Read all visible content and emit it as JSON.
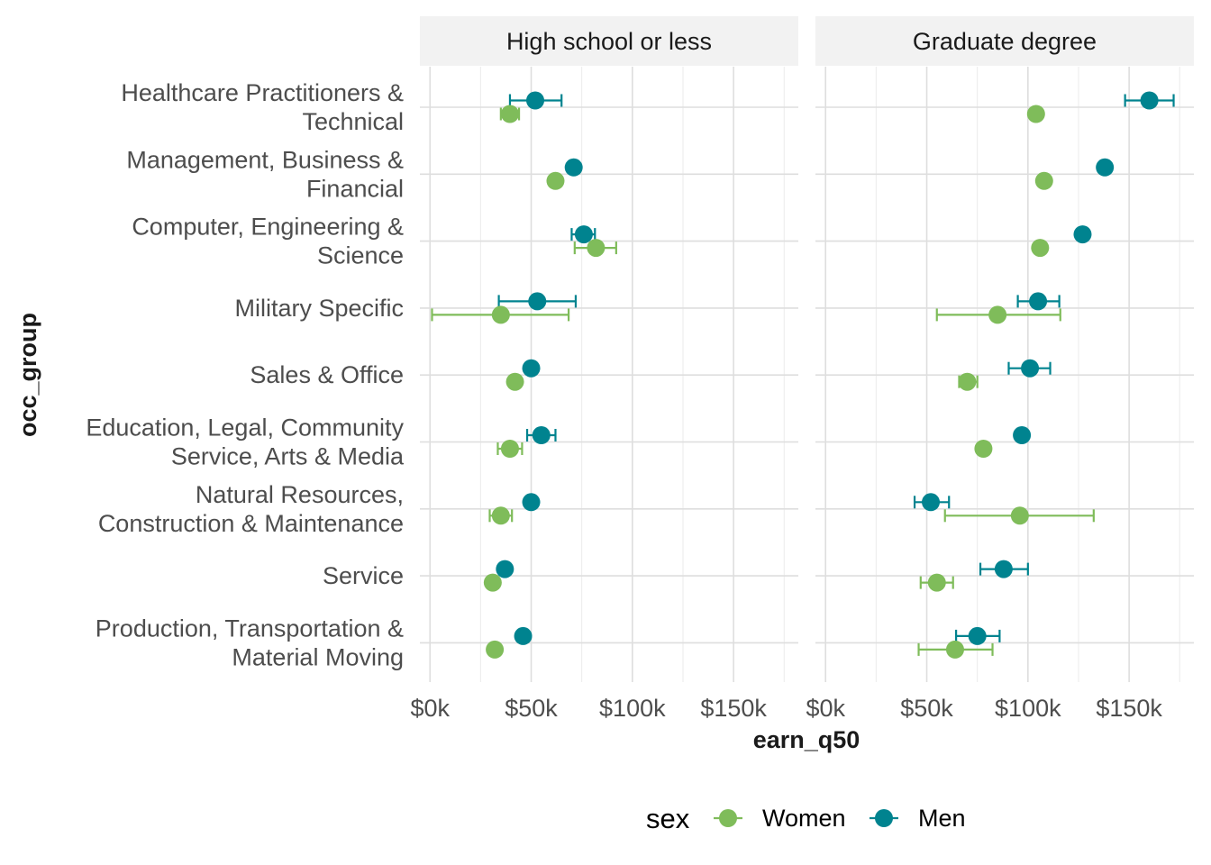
{
  "chart_data": {
    "type": "scatter",
    "ylabel": "occ_group",
    "xlabel": "earn_q50",
    "xlim": [
      -5000,
      182000
    ],
    "x_ticks": [
      0,
      50000,
      100000,
      150000
    ],
    "x_tick_labels": [
      "$0k",
      "$50k",
      "$100k",
      "$150k"
    ],
    "grid": true,
    "legend_position": "bottom",
    "legend_title": "sex",
    "categories": [
      "Healthcare Practitioners & Technical",
      "Management, Business & Financial",
      "Computer, Engineering & Science",
      "Military Specific",
      "Sales & Office",
      "Education, Legal, Community Service, Arts & Media",
      "Natural Resources, Construction & Maintenance",
      "Service",
      "Production, Transportation & Material Moving"
    ],
    "category_label_lines": [
      [
        "Healthcare Practitioners &",
        "Technical"
      ],
      [
        "Management, Business &",
        "Financial"
      ],
      [
        "Computer, Engineering &",
        "Science"
      ],
      [
        "Military Specific"
      ],
      [
        "Sales & Office"
      ],
      [
        "Education, Legal, Community",
        "Service, Arts & Media"
      ],
      [
        "Natural Resources,",
        "Construction & Maintenance"
      ],
      [
        "Service"
      ],
      [
        "Production, Transportation &",
        "Material Moving"
      ]
    ],
    "series_style": [
      {
        "name": "Women",
        "color": "#7fbc5a"
      },
      {
        "name": "Men",
        "color": "#00838f"
      }
    ],
    "panels": [
      {
        "title": "High school or less",
        "series": [
          {
            "name": "Women",
            "values": [
              39500,
              62000,
              82000,
              35000,
              42000,
              39500,
              35000,
              31000,
              32000
            ],
            "err_low": [
              35000,
              null,
              71500,
              1000,
              null,
              33500,
              29500,
              null,
              null
            ],
            "err_high": [
              44000,
              null,
              92000,
              68500,
              null,
              45500,
              40500,
              null,
              null
            ]
          },
          {
            "name": "Men",
            "values": [
              52000,
              71000,
              76000,
              53000,
              50000,
              55000,
              50000,
              37000,
              46000
            ],
            "err_low": [
              39500,
              68500,
              70000,
              34000,
              null,
              48000,
              null,
              null,
              null
            ],
            "err_high": [
              65000,
              73500,
              81500,
              72000,
              null,
              62000,
              null,
              null,
              null
            ]
          }
        ]
      },
      {
        "title": "Graduate degree",
        "series": [
          {
            "name": "Women",
            "values": [
              104000,
              108000,
              106000,
              85000,
              70000,
              78000,
              96000,
              55000,
              64000
            ],
            "err_low": [
              null,
              null,
              null,
              55000,
              66000,
              null,
              59000,
              47000,
              46000
            ],
            "err_high": [
              null,
              null,
              null,
              116000,
              75000,
              null,
              132500,
              63000,
              82500
            ]
          },
          {
            "name": "Men",
            "values": [
              160000,
              138000,
              127000,
              105000,
              101000,
              97000,
              52000,
              88000,
              75000
            ],
            "err_low": [
              148000,
              null,
              null,
              95000,
              90500,
              null,
              44000,
              76500,
              64500
            ],
            "err_high": [
              172000,
              null,
              null,
              115500,
              111000,
              null,
              61000,
              100000,
              86000
            ]
          }
        ]
      }
    ]
  }
}
